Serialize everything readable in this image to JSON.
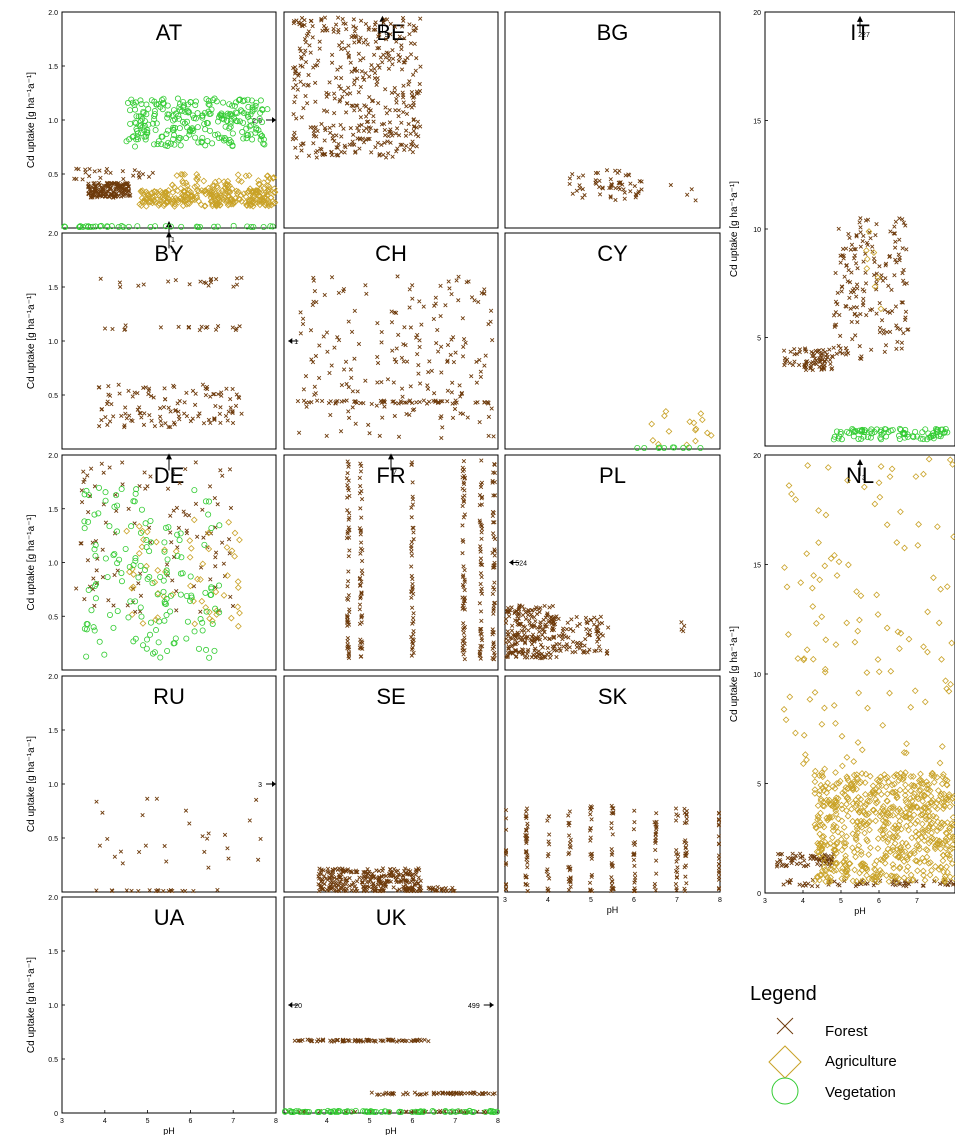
{
  "figure": {
    "legend_title": "Legend",
    "legend_items": [
      {
        "key": "forest",
        "label": "Forest",
        "marker": "x",
        "color": "#6e3b0c"
      },
      {
        "key": "agriculture",
        "label": "Agriculture",
        "marker": "diamond",
        "color": "#c9a227"
      },
      {
        "key": "vegetation",
        "label": "Vegetation",
        "marker": "circle",
        "color": "#33cc33"
      }
    ]
  },
  "chart_data": [
    {
      "type": "scatter",
      "title": "AT",
      "ylabel": "Cd uptake [g ha⁻¹a⁻¹]",
      "xlabel": "",
      "xlim": [
        3,
        8
      ],
      "ylim": [
        0,
        2
      ],
      "yticks": [
        "0.5",
        "1.0",
        "1.5",
        "2.0"
      ],
      "xticks": [],
      "annotations": [
        {
          "text": "2.5",
          "x": 8,
          "y": 1.0
        },
        {
          "text": "1",
          "x": 5.5,
          "y": 0.0
        }
      ],
      "series": [
        {
          "name": "Forest",
          "clusters": [
            {
              "x": [
                3.6,
                4.6
              ],
              "y": [
                0.28,
                0.42
              ],
              "n": 160
            },
            {
              "x": [
                3.2,
                5.2
              ],
              "y": [
                0.45,
                0.55
              ],
              "n": 25
            }
          ]
        },
        {
          "name": "Agriculture",
          "clusters": [
            {
              "x": [
                4.8,
                8
              ],
              "y": [
                0.2,
                0.35
              ],
              "n": 260
            },
            {
              "x": [
                5.5,
                8
              ],
              "y": [
                0.35,
                0.5
              ],
              "n": 60
            }
          ]
        },
        {
          "name": "Vegetation",
          "clusters": [
            {
              "x": [
                4.5,
                7.8
              ],
              "y": [
                0.75,
                1.2
              ],
              "n": 260
            },
            {
              "x": [
                3,
                8
              ],
              "y": [
                0.0,
                0.02
              ],
              "n": 40
            }
          ]
        }
      ]
    },
    {
      "type": "scatter",
      "title": "BE",
      "ylabel": "",
      "xlabel": "",
      "xlim": [
        3,
        8
      ],
      "ylim": [
        0,
        2
      ],
      "yticks": [],
      "xticks": [],
      "annotations": [
        {
          "text": "9",
          "x": 5.3,
          "y": 1.9
        }
      ],
      "series": [
        {
          "name": "Forest",
          "clusters": [
            {
              "x": [
                3.2,
                6.2
              ],
              "y": [
                0.65,
                1.95
              ],
              "n": 420
            }
          ]
        }
      ]
    },
    {
      "type": "scatter",
      "title": "BG",
      "ylabel": "",
      "xlabel": "",
      "xlim": [
        3,
        8
      ],
      "ylim": [
        0,
        2
      ],
      "yticks": [],
      "xticks": [],
      "annotations": [],
      "series": [
        {
          "name": "Forest",
          "clusters": [
            {
              "x": [
                4.5,
                6.2
              ],
              "y": [
                0.25,
                0.55
              ],
              "n": 60
            },
            {
              "x": [
                6.8,
                7.5
              ],
              "y": [
                0.25,
                0.4
              ],
              "n": 4
            }
          ]
        }
      ]
    },
    {
      "type": "scatter",
      "title": "IT",
      "ylabel": "Cd uptake [g ha⁻¹a⁻¹]",
      "xlabel": "",
      "xlim": [
        3,
        8
      ],
      "ylim": [
        0,
        20
      ],
      "yticks": [
        "5",
        "10",
        "15",
        "20"
      ],
      "xticks": [],
      "annotations": [
        {
          "text": "227",
          "x": 5.5,
          "y": 19.5
        }
      ],
      "series": [
        {
          "name": "Forest",
          "clusters": [
            {
              "x": [
                3.5,
                4.8
              ],
              "y": [
                3.5,
                4.5
              ],
              "n": 80
            },
            {
              "x": [
                4.8,
                6.8
              ],
              "y": [
                4,
                10.5
              ],
              "n": 180
            }
          ]
        },
        {
          "name": "Agriculture",
          "clusters": [
            {
              "x": [
                5.5,
                6.2
              ],
              "y": [
                6,
                12
              ],
              "n": 8
            }
          ]
        },
        {
          "name": "Vegetation",
          "clusters": [
            {
              "x": [
                4.8,
                7.8
              ],
              "y": [
                0.3,
                0.8
              ],
              "n": 90
            }
          ]
        }
      ]
    },
    {
      "type": "scatter",
      "title": "BY",
      "ylabel": "Cd uptake [g ha⁻¹a⁻¹]",
      "xlabel": "",
      "xlim": [
        3,
        8
      ],
      "ylim": [
        0,
        2
      ],
      "yticks": [
        "0.5",
        "1.0",
        "1.5",
        "2.0"
      ],
      "xticks": [],
      "annotations": [
        {
          "text": "1",
          "x": 5.5,
          "y": 1.95
        }
      ],
      "series": [
        {
          "name": "Forest",
          "clusters": [
            {
              "x": [
                3.8,
                7.2
              ],
              "y": [
                0.2,
                0.6
              ],
              "n": 120
            },
            {
              "x": [
                3.8,
                7.2
              ],
              "y": [
                1.1,
                1.15
              ],
              "n": 20
            },
            {
              "x": [
                3.8,
                7.2
              ],
              "y": [
                1.5,
                1.6
              ],
              "n": 20
            }
          ]
        }
      ]
    },
    {
      "type": "scatter",
      "title": "CH",
      "ylabel": "",
      "xlabel": "",
      "xlim": [
        3,
        8
      ],
      "ylim": [
        0,
        2
      ],
      "yticks": [],
      "xticks": [],
      "annotations": [
        {
          "text": "1",
          "x": 3.1,
          "y": 1.0
        }
      ],
      "series": [
        {
          "name": "Forest",
          "clusters": [
            {
              "x": [
                3.3,
                7.9
              ],
              "y": [
                0.1,
                1.6
              ],
              "n": 200
            },
            {
              "x": [
                3.3,
                7.9
              ],
              "y": [
                0.42,
                0.45
              ],
              "n": 60
            }
          ]
        }
      ]
    },
    {
      "type": "scatter",
      "title": "CY",
      "ylabel": "",
      "xlabel": "",
      "xlim": [
        3,
        8
      ],
      "ylim": [
        0,
        2
      ],
      "yticks": [],
      "xticks": [],
      "annotations": [],
      "series": [
        {
          "name": "Agriculture",
          "clusters": [
            {
              "x": [
                6.4,
                7.8
              ],
              "y": [
                0.0,
                0.35
              ],
              "n": 16
            }
          ]
        },
        {
          "name": "Vegetation",
          "clusters": [
            {
              "x": [
                6.0,
                7.8
              ],
              "y": [
                0.0,
                0.02
              ],
              "n": 10
            }
          ]
        }
      ]
    },
    {
      "type": "scatter",
      "title": "DE",
      "ylabel": "Cd uptake [g ha⁻¹a⁻¹]",
      "xlabel": "",
      "xlim": [
        3,
        8
      ],
      "ylim": [
        0,
        2
      ],
      "yticks": [
        "0.5",
        "1.0",
        "1.5",
        "2.0"
      ],
      "xticks": [],
      "annotations": [
        {
          "text": "3",
          "x": 5.5,
          "y": 1.95
        }
      ],
      "series": [
        {
          "name": "Forest",
          "clusters": [
            {
              "x": [
                3.3,
                7.0
              ],
              "y": [
                0.5,
                1.95
              ],
              "n": 110
            }
          ]
        },
        {
          "name": "Agriculture",
          "clusters": [
            {
              "x": [
                4.5,
                7.2
              ],
              "y": [
                0.4,
                1.4
              ],
              "n": 60
            }
          ]
        },
        {
          "name": "Vegetation",
          "clusters": [
            {
              "x": [
                3.5,
                6.7
              ],
              "y": [
                0.1,
                1.7
              ],
              "n": 150
            }
          ]
        }
      ]
    },
    {
      "type": "scatter",
      "title": "FR",
      "ylabel": "",
      "xlabel": "",
      "xlim": [
        3,
        8
      ],
      "ylim": [
        0,
        2
      ],
      "yticks": [],
      "xticks": [],
      "annotations": [
        {
          "text": "7",
          "x": 5.5,
          "y": 1.95
        }
      ],
      "series": [
        {
          "name": "Forest",
          "columns": [
            4.5,
            4.8,
            6.0,
            7.2,
            7.6,
            7.9
          ],
          "y": [
            0.1,
            1.95
          ],
          "n": 300
        }
      ]
    },
    {
      "type": "scatter",
      "title": "PL",
      "ylabel": "",
      "xlabel": "",
      "xlim": [
        3,
        8
      ],
      "ylim": [
        0,
        2
      ],
      "yticks": [],
      "xticks": [],
      "annotations": [
        {
          "text": "524",
          "x": 3.1,
          "y": 1.0
        }
      ],
      "series": [
        {
          "name": "Forest",
          "clusters": [
            {
              "x": [
                3,
                4.2
              ],
              "y": [
                0.1,
                0.6
              ],
              "n": 220
            },
            {
              "x": [
                4.2,
                5.4
              ],
              "y": [
                0.15,
                0.5
              ],
              "n": 80
            },
            {
              "x": [
                7.1,
                7.2
              ],
              "y": [
                0.35,
                0.45
              ],
              "n": 4
            }
          ]
        }
      ]
    },
    {
      "type": "scatter",
      "title": "NL",
      "ylabel": "Cd uptake [g ha⁻¹a⁻¹]",
      "xlabel": "pH",
      "xlim": [
        3,
        8
      ],
      "ylim": [
        0,
        20
      ],
      "yticks": [
        "0",
        "5",
        "10",
        "15",
        "20"
      ],
      "xticks": [
        "3",
        "4",
        "5",
        "6",
        "7"
      ],
      "annotations": [
        {
          "text": "3",
          "x": 5.5,
          "y": 19.5
        }
      ],
      "series": [
        {
          "name": "Forest",
          "clusters": [
            {
              "x": [
                3.3,
                4.8
              ],
              "y": [
                1.2,
                1.8
              ],
              "n": 70
            },
            {
              "x": [
                3.3,
                8
              ],
              "y": [
                0.3,
                0.6
              ],
              "n": 60
            }
          ]
        },
        {
          "name": "Agriculture",
          "clusters": [
            {
              "x": [
                4.3,
                8
              ],
              "y": [
                0.5,
                5.5
              ],
              "n": 650
            },
            {
              "x": [
                3.5,
                8
              ],
              "y": [
                5.5,
                20
              ],
              "n": 120
            }
          ]
        }
      ]
    },
    {
      "type": "scatter",
      "title": "RU",
      "ylabel": "Cd uptake [g ha⁻¹a⁻¹]",
      "xlabel": "",
      "xlim": [
        3,
        8
      ],
      "ylim": [
        0,
        2
      ],
      "yticks": [
        "0.5",
        "1.0",
        "1.5",
        "2.0"
      ],
      "xticks": [],
      "annotations": [
        {
          "text": "3",
          "x": 8,
          "y": 1.0
        }
      ],
      "series": [
        {
          "name": "Forest",
          "clusters": [
            {
              "x": [
                3.8,
                7.7
              ],
              "y": [
                0.2,
                0.9
              ],
              "n": 28
            },
            {
              "x": [
                3.8,
                7.2
              ],
              "y": [
                0.0,
                0.02
              ],
              "n": 20
            }
          ]
        }
      ]
    },
    {
      "type": "scatter",
      "title": "SE",
      "ylabel": "",
      "xlabel": "",
      "xlim": [
        3,
        8
      ],
      "ylim": [
        0,
        2
      ],
      "yticks": [],
      "xticks": [],
      "annotations": [],
      "series": [
        {
          "name": "Forest",
          "clusters": [
            {
              "x": [
                3.8,
                6.2
              ],
              "y": [
                0.0,
                0.22
              ],
              "n": 280
            },
            {
              "x": [
                5.8,
                7.0
              ],
              "y": [
                0.0,
                0.05
              ],
              "n": 30
            }
          ]
        }
      ]
    },
    {
      "type": "scatter",
      "title": "SK",
      "ylabel": "",
      "xlabel": "pH",
      "xlim": [
        3,
        8
      ],
      "ylim": [
        0,
        2
      ],
      "yticks": [],
      "xticks": [
        "3",
        "4",
        "5",
        "6",
        "7",
        "8"
      ],
      "annotations": [],
      "series": [
        {
          "name": "Forest",
          "columns": [
            3.0,
            3.5,
            4.0,
            4.5,
            5.0,
            5.5,
            6.0,
            6.5,
            7.0,
            7.2,
            8.0
          ],
          "y": [
            0.0,
            0.8
          ],
          "n": 240
        }
      ]
    },
    {
      "type": "scatter",
      "title": "UA",
      "ylabel": "Cd uptake [g ha⁻¹a⁻¹]",
      "xlabel": "pH",
      "xlim": [
        3,
        8
      ],
      "ylim": [
        0,
        2
      ],
      "yticks": [
        "0",
        "0.5",
        "1.0",
        "1.5",
        "2.0"
      ],
      "xticks": [
        "3",
        "4",
        "5",
        "6",
        "7",
        "8"
      ],
      "annotations": [],
      "series": []
    },
    {
      "type": "scatter",
      "title": "UK",
      "ylabel": "",
      "xlabel": "pH",
      "xlim": [
        3,
        8
      ],
      "ylim": [
        0,
        2
      ],
      "yticks": [],
      "xticks": [
        "4",
        "5",
        "6",
        "7",
        "8"
      ],
      "annotations": [
        {
          "text": "20",
          "x": 3.1,
          "y": 1.0
        },
        {
          "text": "499",
          "x": 7.9,
          "y": 1.0
        }
      ],
      "series": [
        {
          "name": "Forest",
          "clusters": [
            {
              "x": [
                3.2,
                6.4
              ],
              "y": [
                0.66,
                0.68
              ],
              "n": 80
            },
            {
              "x": [
                5.0,
                8
              ],
              "y": [
                0.17,
                0.19
              ],
              "n": 60
            },
            {
              "x": [
                3,
                8
              ],
              "y": [
                0.0,
                0.02
              ],
              "n": 40
            }
          ]
        },
        {
          "name": "Vegetation",
          "clusters": [
            {
              "x": [
                3,
                8
              ],
              "y": [
                0.0,
                0.02
              ],
              "n": 80
            }
          ]
        }
      ]
    }
  ]
}
